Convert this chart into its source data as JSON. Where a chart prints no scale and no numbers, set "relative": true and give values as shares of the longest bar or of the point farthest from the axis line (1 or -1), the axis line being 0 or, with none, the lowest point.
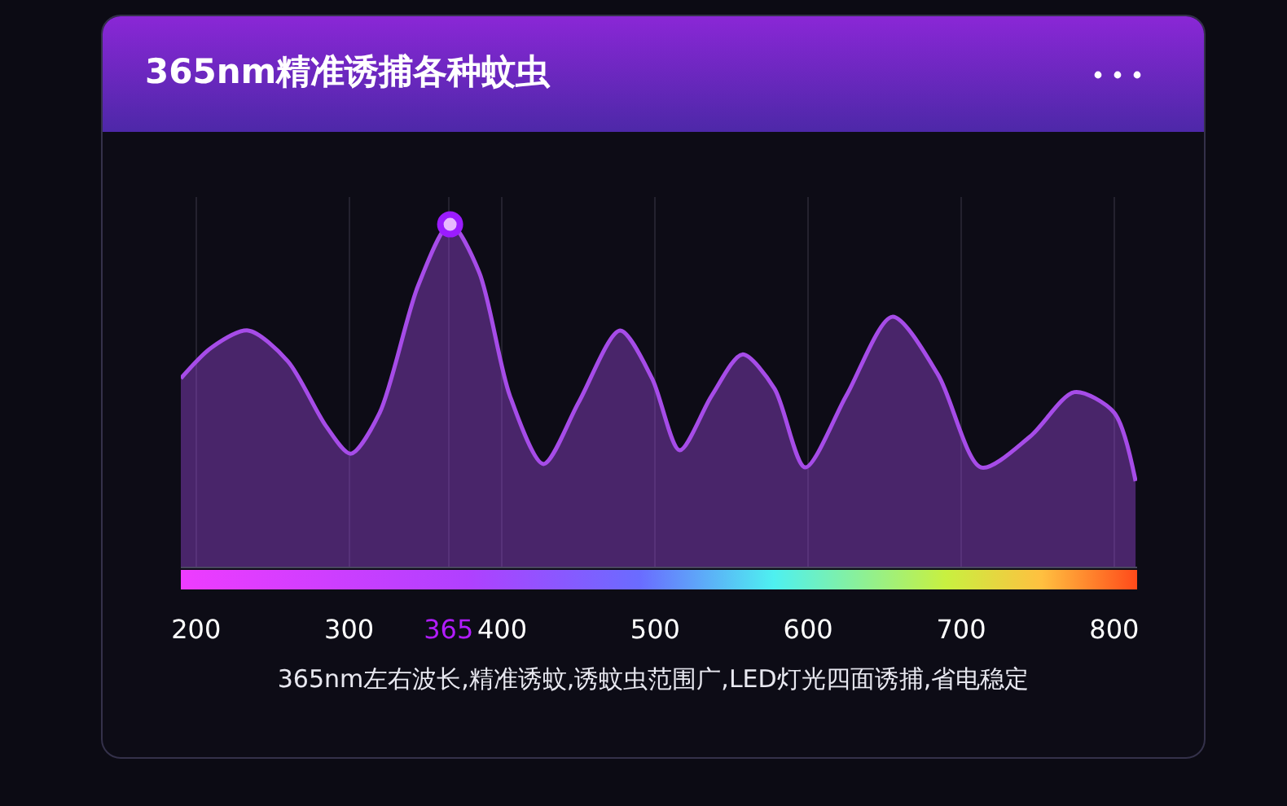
{
  "chart_data": {
    "type": "area",
    "title": "365nm精准诱捕各种蚊虫",
    "relative": true,
    "grid": "x",
    "marker": "none",
    "xlim": [
      190,
      815
    ],
    "xticks": [
      200,
      300,
      365,
      400,
      500,
      600,
      700,
      800
    ],
    "series": [
      {
        "color": "#a64ce8",
        "x": [
          190,
          210,
          234,
          260,
          285,
          301,
          320,
          345,
          366,
          385,
          405,
          427,
          450,
          477,
          498,
          516,
          537,
          557,
          578,
          598,
          625,
          655,
          685,
          713,
          745,
          774,
          800,
          814
        ],
        "values": [
          0.55,
          0.64,
          0.69,
          0.6,
          0.41,
          0.33,
          0.45,
          0.82,
          1,
          0.86,
          0.5,
          0.3,
          0.48,
          0.69,
          0.55,
          0.34,
          0.5,
          0.62,
          0.52,
          0.29,
          0.5,
          0.73,
          0.56,
          0.29,
          0.38,
          0.51,
          0.45,
          0.25
        ]
      },
      {
        "type": "scatter",
        "color": "#e8b8ff",
        "marker": "circle",
        "x": [
          366
        ],
        "values": [
          1
        ]
      }
    ],
    "annotations": [
      "365nm左右波长,精准诱蚊,诱蚊虫范围广,LED灯光四面诱捕,省电稳定"
    ]
  }
}
